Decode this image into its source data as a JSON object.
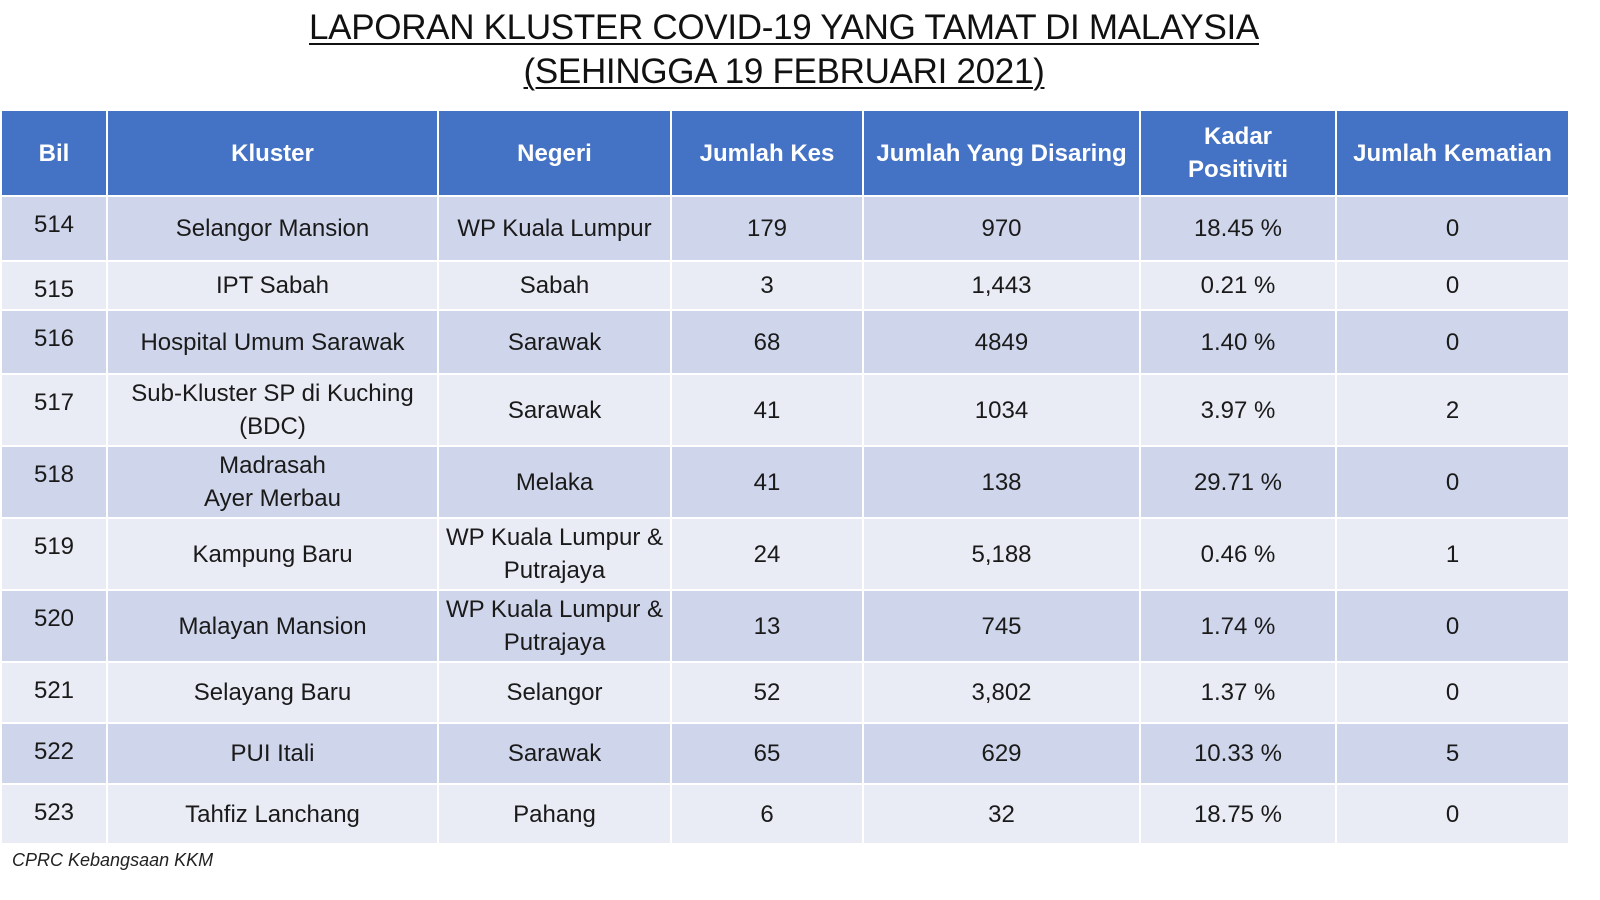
{
  "title": {
    "line1": "LAPORAN KLUSTER COVID-19 YANG TAMAT DI MALAYSIA",
    "line2": "(SEHINGGA 19 FEBRUARI 2021)"
  },
  "table": {
    "headers": {
      "bil": "Bil",
      "kluster": "Kluster",
      "negeri": "Negeri",
      "jumlah_kes": "Jumlah Kes",
      "jumlah_disaring": "Jumlah Yang Disaring",
      "kadar_line1": "Kadar",
      "kadar_line2": "Positiviti",
      "jumlah_kematian": "Jumlah Kematian"
    },
    "rows": [
      {
        "bil": "514",
        "kluster_1": "Selangor Mansion",
        "kluster_2": "",
        "negeri_1": "WP Kuala Lumpur",
        "negeri_2": "",
        "kes": "179",
        "disaring": "970",
        "positiviti": "18.45 %",
        "kematian": "0"
      },
      {
        "bil": "515",
        "kluster_1": "IPT Sabah",
        "kluster_2": "",
        "negeri_1": "Sabah",
        "negeri_2": "",
        "kes": "3",
        "disaring": "1,443",
        "positiviti": "0.21 %",
        "kematian": "0"
      },
      {
        "bil": "516",
        "kluster_1": "Hospital Umum Sarawak",
        "kluster_2": "",
        "negeri_1": "Sarawak",
        "negeri_2": "",
        "kes": "68",
        "disaring": "4849",
        "positiviti": "1.40 %",
        "kematian": "0"
      },
      {
        "bil": "517",
        "kluster_1": "Sub-Kluster SP di Kuching",
        "kluster_2": "(BDC)",
        "negeri_1": "Sarawak",
        "negeri_2": "",
        "kes": "41",
        "disaring": "1034",
        "positiviti": "3.97 %",
        "kematian": "2"
      },
      {
        "bil": "518",
        "kluster_1": "Madrasah",
        "kluster_2": "Ayer Merbau",
        "negeri_1": "Melaka",
        "negeri_2": "",
        "kes": "41",
        "disaring": "138",
        "positiviti": "29.71 %",
        "kematian": "0"
      },
      {
        "bil": "519",
        "kluster_1": "Kampung Baru",
        "kluster_2": "",
        "negeri_1": "WP Kuala Lumpur &",
        "negeri_2": "Putrajaya",
        "kes": "24",
        "disaring": "5,188",
        "positiviti": "0.46 %",
        "kematian": "1"
      },
      {
        "bil": "520",
        "kluster_1": "Malayan Mansion",
        "kluster_2": "",
        "negeri_1": "WP Kuala Lumpur &",
        "negeri_2": "Putrajaya",
        "kes": "13",
        "disaring": "745",
        "positiviti": "1.74 %",
        "kematian": "0"
      },
      {
        "bil": "521",
        "kluster_1": "Selayang Baru",
        "kluster_2": "",
        "negeri_1": "Selangor",
        "negeri_2": "",
        "kes": "52",
        "disaring": "3,802",
        "positiviti": "1.37 %",
        "kematian": "0"
      },
      {
        "bil": "522",
        "kluster_1": "PUI Itali",
        "kluster_2": "",
        "negeri_1": "Sarawak",
        "negeri_2": "",
        "kes": "65",
        "disaring": "629",
        "positiviti": "10.33 %",
        "kematian": "5"
      },
      {
        "bil": "523",
        "kluster_1": "Tahfiz Lanchang",
        "kluster_2": "",
        "negeri_1": "Pahang",
        "negeri_2": "",
        "kes": "6",
        "disaring": "32",
        "positiviti": "18.75 %",
        "kematian": "0"
      }
    ]
  },
  "footer": {
    "source": "CPRC Kebangsaan KKM"
  },
  "colors": {
    "header_bg": "#4472c4",
    "row_dark": "#cfd5ea",
    "row_light": "#e9ebf5"
  }
}
